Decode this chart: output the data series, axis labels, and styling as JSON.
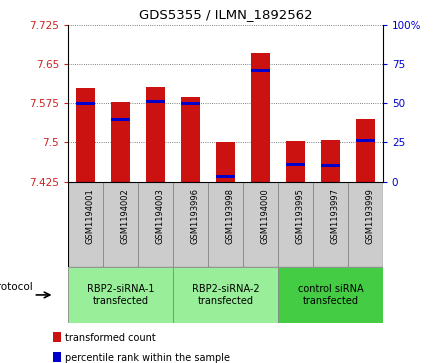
{
  "title": "GDS5355 / ILMN_1892562",
  "samples": [
    "GSM1194001",
    "GSM1194002",
    "GSM1194003",
    "GSM1193996",
    "GSM1193998",
    "GSM1194000",
    "GSM1193995",
    "GSM1193997",
    "GSM1193999"
  ],
  "bar_tops": [
    7.605,
    7.578,
    7.607,
    7.588,
    7.5,
    7.672,
    7.503,
    7.504,
    7.545
  ],
  "bar_bottoms": [
    7.425,
    7.425,
    7.425,
    7.425,
    7.425,
    7.425,
    7.425,
    7.425,
    7.425
  ],
  "percentile_values": [
    7.575,
    7.545,
    7.578,
    7.575,
    7.435,
    7.638,
    7.458,
    7.455,
    7.503
  ],
  "ylim": [
    7.425,
    7.725
  ],
  "yticks": [
    7.425,
    7.5,
    7.575,
    7.65,
    7.725
  ],
  "ytick_labels": [
    "7.425",
    "7.5",
    "7.575",
    "7.65",
    "7.725"
  ],
  "right_yticks": [
    0,
    25,
    50,
    75,
    100
  ],
  "right_ytick_labels": [
    "0",
    "25",
    "50",
    "75",
    "100%"
  ],
  "bar_color": "#cc1111",
  "percentile_color": "#0000cc",
  "groups": [
    {
      "label": "RBP2-siRNA-1\ntransfected",
      "start": 0,
      "end": 2,
      "color": "#99ee99"
    },
    {
      "label": "RBP2-siRNA-2\ntransfected",
      "start": 3,
      "end": 5,
      "color": "#99ee99"
    },
    {
      "label": "control siRNA\ntransfected",
      "start": 6,
      "end": 8,
      "color": "#44cc44"
    }
  ],
  "protocol_label": "protocol",
  "legend_items": [
    {
      "label": "transformed count",
      "color": "#cc1111"
    },
    {
      "label": "percentile rank within the sample",
      "color": "#0000cc"
    }
  ],
  "grid_color": "#555555",
  "tick_color_left": "#cc2222",
  "tick_color_right": "#0000cc",
  "sample_box_color": "#cccccc",
  "divider_color": "#888888"
}
